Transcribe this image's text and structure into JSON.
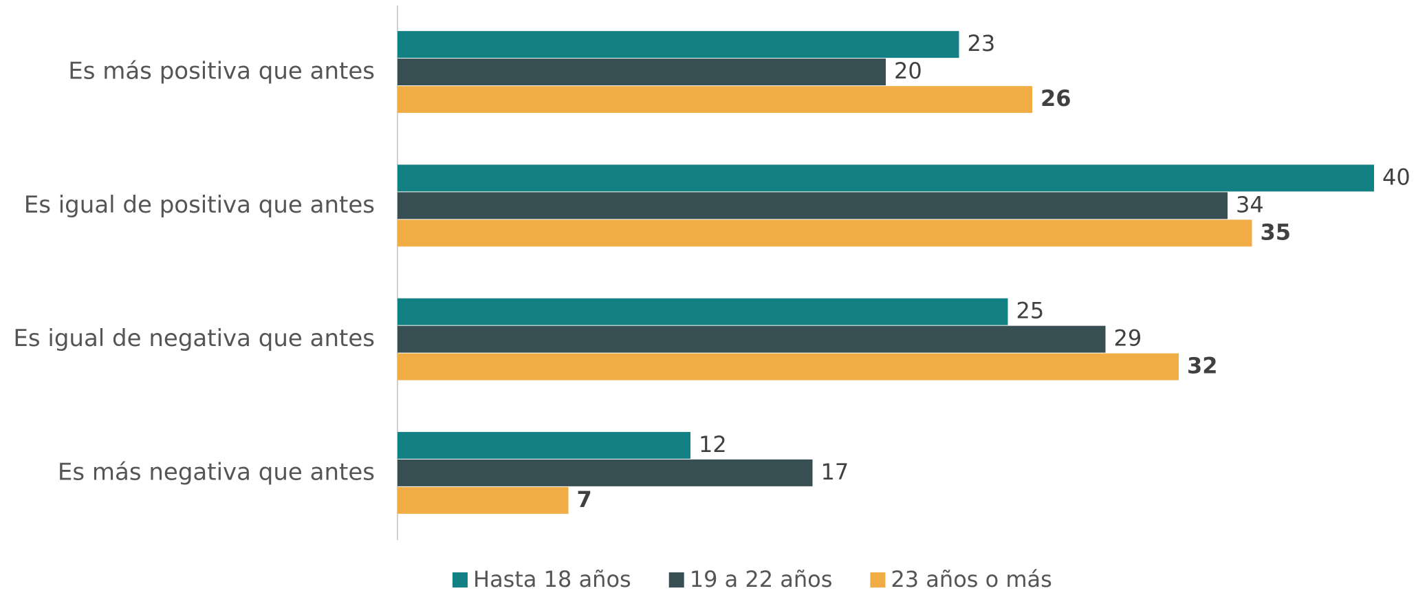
{
  "chart_data": {
    "type": "hbar",
    "categories": [
      "Es más positiva que antes",
      "Es igual de positiva que antes",
      "Es igual de negativa que antes",
      "Es más negativa que antes"
    ],
    "series": [
      {
        "name": "Hasta 18 años",
        "color": "#138183",
        "values": [
          23,
          40,
          25,
          12
        ]
      },
      {
        "name": "19 a 22 años",
        "color": "#374f52",
        "values": [
          20,
          34,
          29,
          17
        ]
      },
      {
        "name": "23 años o más",
        "color": "#f0ac45",
        "values": [
          26,
          35,
          32,
          7
        ],
        "bold_labels": true
      }
    ],
    "xlim": [
      0,
      40
    ],
    "legend": "bottom"
  }
}
